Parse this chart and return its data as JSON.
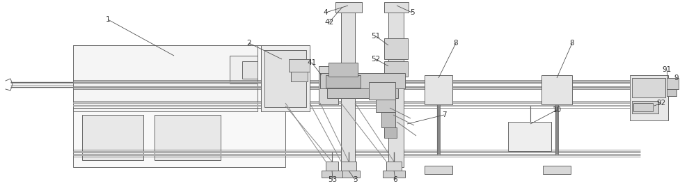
{
  "bg_color": "#ffffff",
  "lc": "#666666",
  "lw": 0.7,
  "fig_w": 10.0,
  "fig_h": 2.7,
  "dpi": 100
}
